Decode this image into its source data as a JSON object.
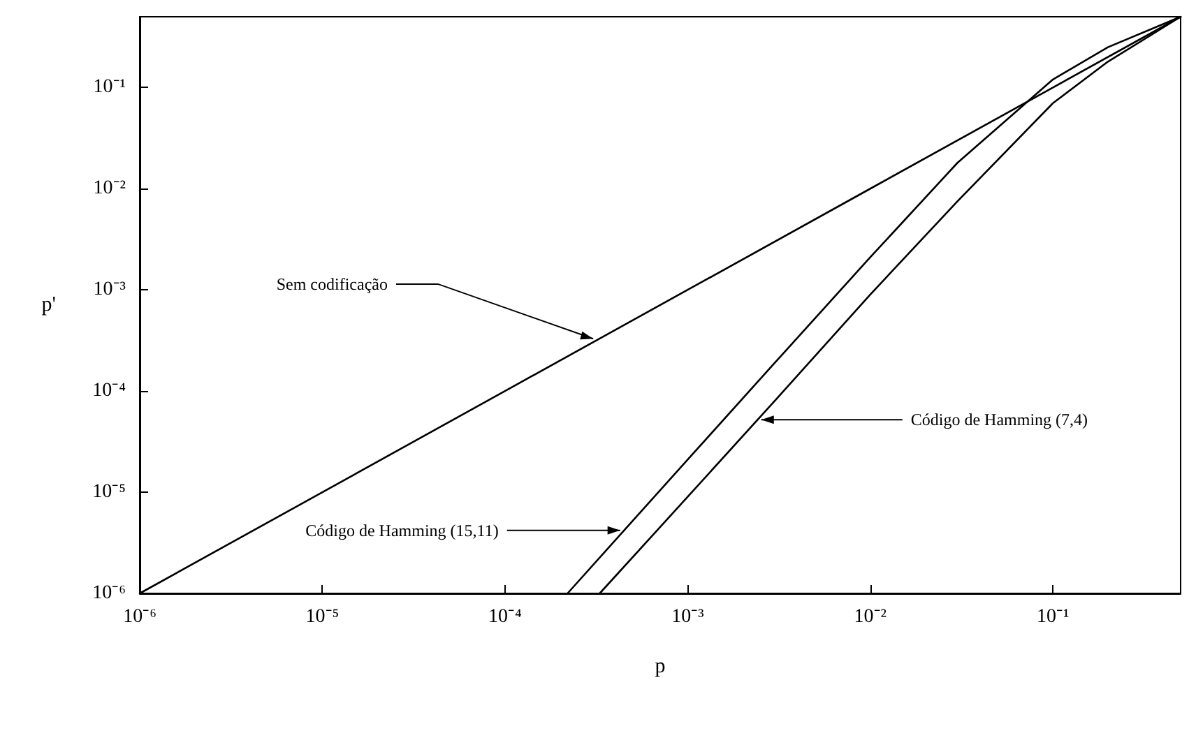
{
  "chart_data": {
    "type": "line",
    "xlabel": "p",
    "ylabel": "p'",
    "log": "xy",
    "grid": false,
    "marker": "none",
    "line_style": "solid",
    "xlim": [
      1e-06,
      0.5
    ],
    "ylim": [
      1e-06,
      0.5
    ],
    "xticks": [
      {
        "value": 1e-06,
        "label": "10⁻⁶"
      },
      {
        "value": 1e-05,
        "label": "10⁻⁵"
      },
      {
        "value": 0.0001,
        "label": "10⁻⁴"
      },
      {
        "value": 0.001,
        "label": "10⁻³"
      },
      {
        "value": 0.01,
        "label": "10⁻²"
      },
      {
        "value": 0.1,
        "label": "10⁻¹"
      }
    ],
    "yticks": [
      {
        "value": 1e-06,
        "label": "10⁻⁶"
      },
      {
        "value": 1e-05,
        "label": "10⁻⁵"
      },
      {
        "value": 0.0001,
        "label": "10⁻⁴"
      },
      {
        "value": 0.001,
        "label": "10⁻³"
      },
      {
        "value": 0.01,
        "label": "10⁻²"
      },
      {
        "value": 0.1,
        "label": "10⁻¹"
      }
    ],
    "series": [
      {
        "color": "#000000",
        "x": [
          1e-06,
          1e-05,
          0.0001,
          0.001,
          0.01,
          0.1,
          0.5
        ],
        "values": [
          1e-06,
          1e-05,
          0.0001,
          0.001,
          0.01,
          0.1,
          0.5
        ]
      },
      {
        "color": "#000000",
        "x": [
          0.00033,
          0.001,
          0.003,
          0.01,
          0.03,
          0.1,
          0.2,
          0.5
        ],
        "values": [
          1e-06,
          9e-06,
          8e-05,
          0.0009,
          0.0075,
          0.07,
          0.18,
          0.5
        ]
      },
      {
        "color": "#000000",
        "x": [
          0.00022,
          0.001,
          0.003,
          0.01,
          0.03,
          0.1,
          0.2,
          0.5
        ],
        "values": [
          1e-06,
          2.1e-05,
          0.00019,
          0.0021,
          0.018,
          0.12,
          0.25,
          0.5
        ]
      }
    ],
    "annotations": [
      {
        "text": "Sem codificação",
        "x": 0.00032,
        "y": 0.00032
      },
      {
        "text": "Código de Hamming (7,4)",
        "x": 0.0024,
        "y": 5.2e-05
      },
      {
        "text": "Código de Hamming (15,11)",
        "x": 0.00045,
        "y": 4.2e-06
      }
    ]
  }
}
